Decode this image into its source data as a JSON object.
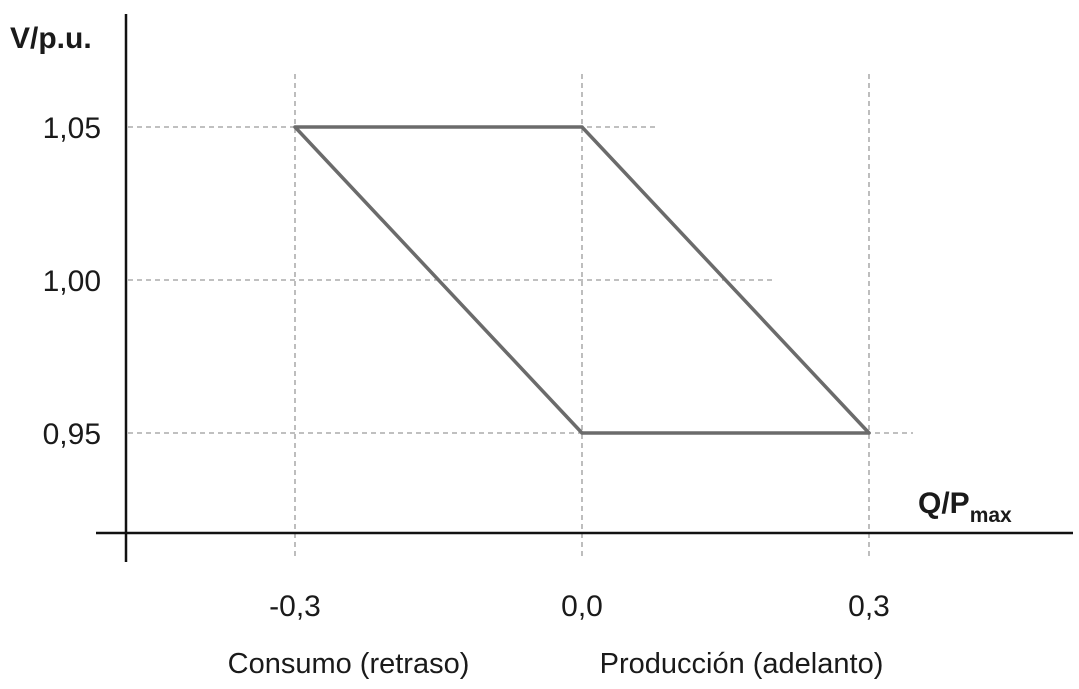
{
  "chart_data": {
    "type": "line",
    "title": "",
    "ylabel": "V/p.u.",
    "xlabel_main": "Q/P",
    "xlabel_sub": "max",
    "x_ticks": [
      {
        "value": -0.3,
        "label": "-0,3"
      },
      {
        "value": 0.0,
        "label": "0,0"
      },
      {
        "value": 0.3,
        "label": "0,3"
      }
    ],
    "y_ticks": [
      {
        "value": 1.05,
        "label": "1,05"
      },
      {
        "value": 1.0,
        "label": "1,00"
      },
      {
        "value": 0.95,
        "label": "0,95"
      }
    ],
    "x_region_labels": [
      {
        "text": "Consumo (retraso)"
      },
      {
        "text": "Producción (adelanto)"
      }
    ],
    "series": [
      {
        "points": [
          {
            "x": -0.3,
            "y": 1.05
          },
          {
            "x": 0.0,
            "y": 1.05
          },
          {
            "x": 0.3,
            "y": 0.95
          },
          {
            "x": 0.0,
            "y": 0.95
          },
          {
            "x": -0.3,
            "y": 1.05
          }
        ]
      }
    ],
    "grid": "dashed",
    "colors": {
      "curve": "#6b6b6b",
      "grid": "#9a9a9a",
      "axis": "#111111"
    }
  }
}
